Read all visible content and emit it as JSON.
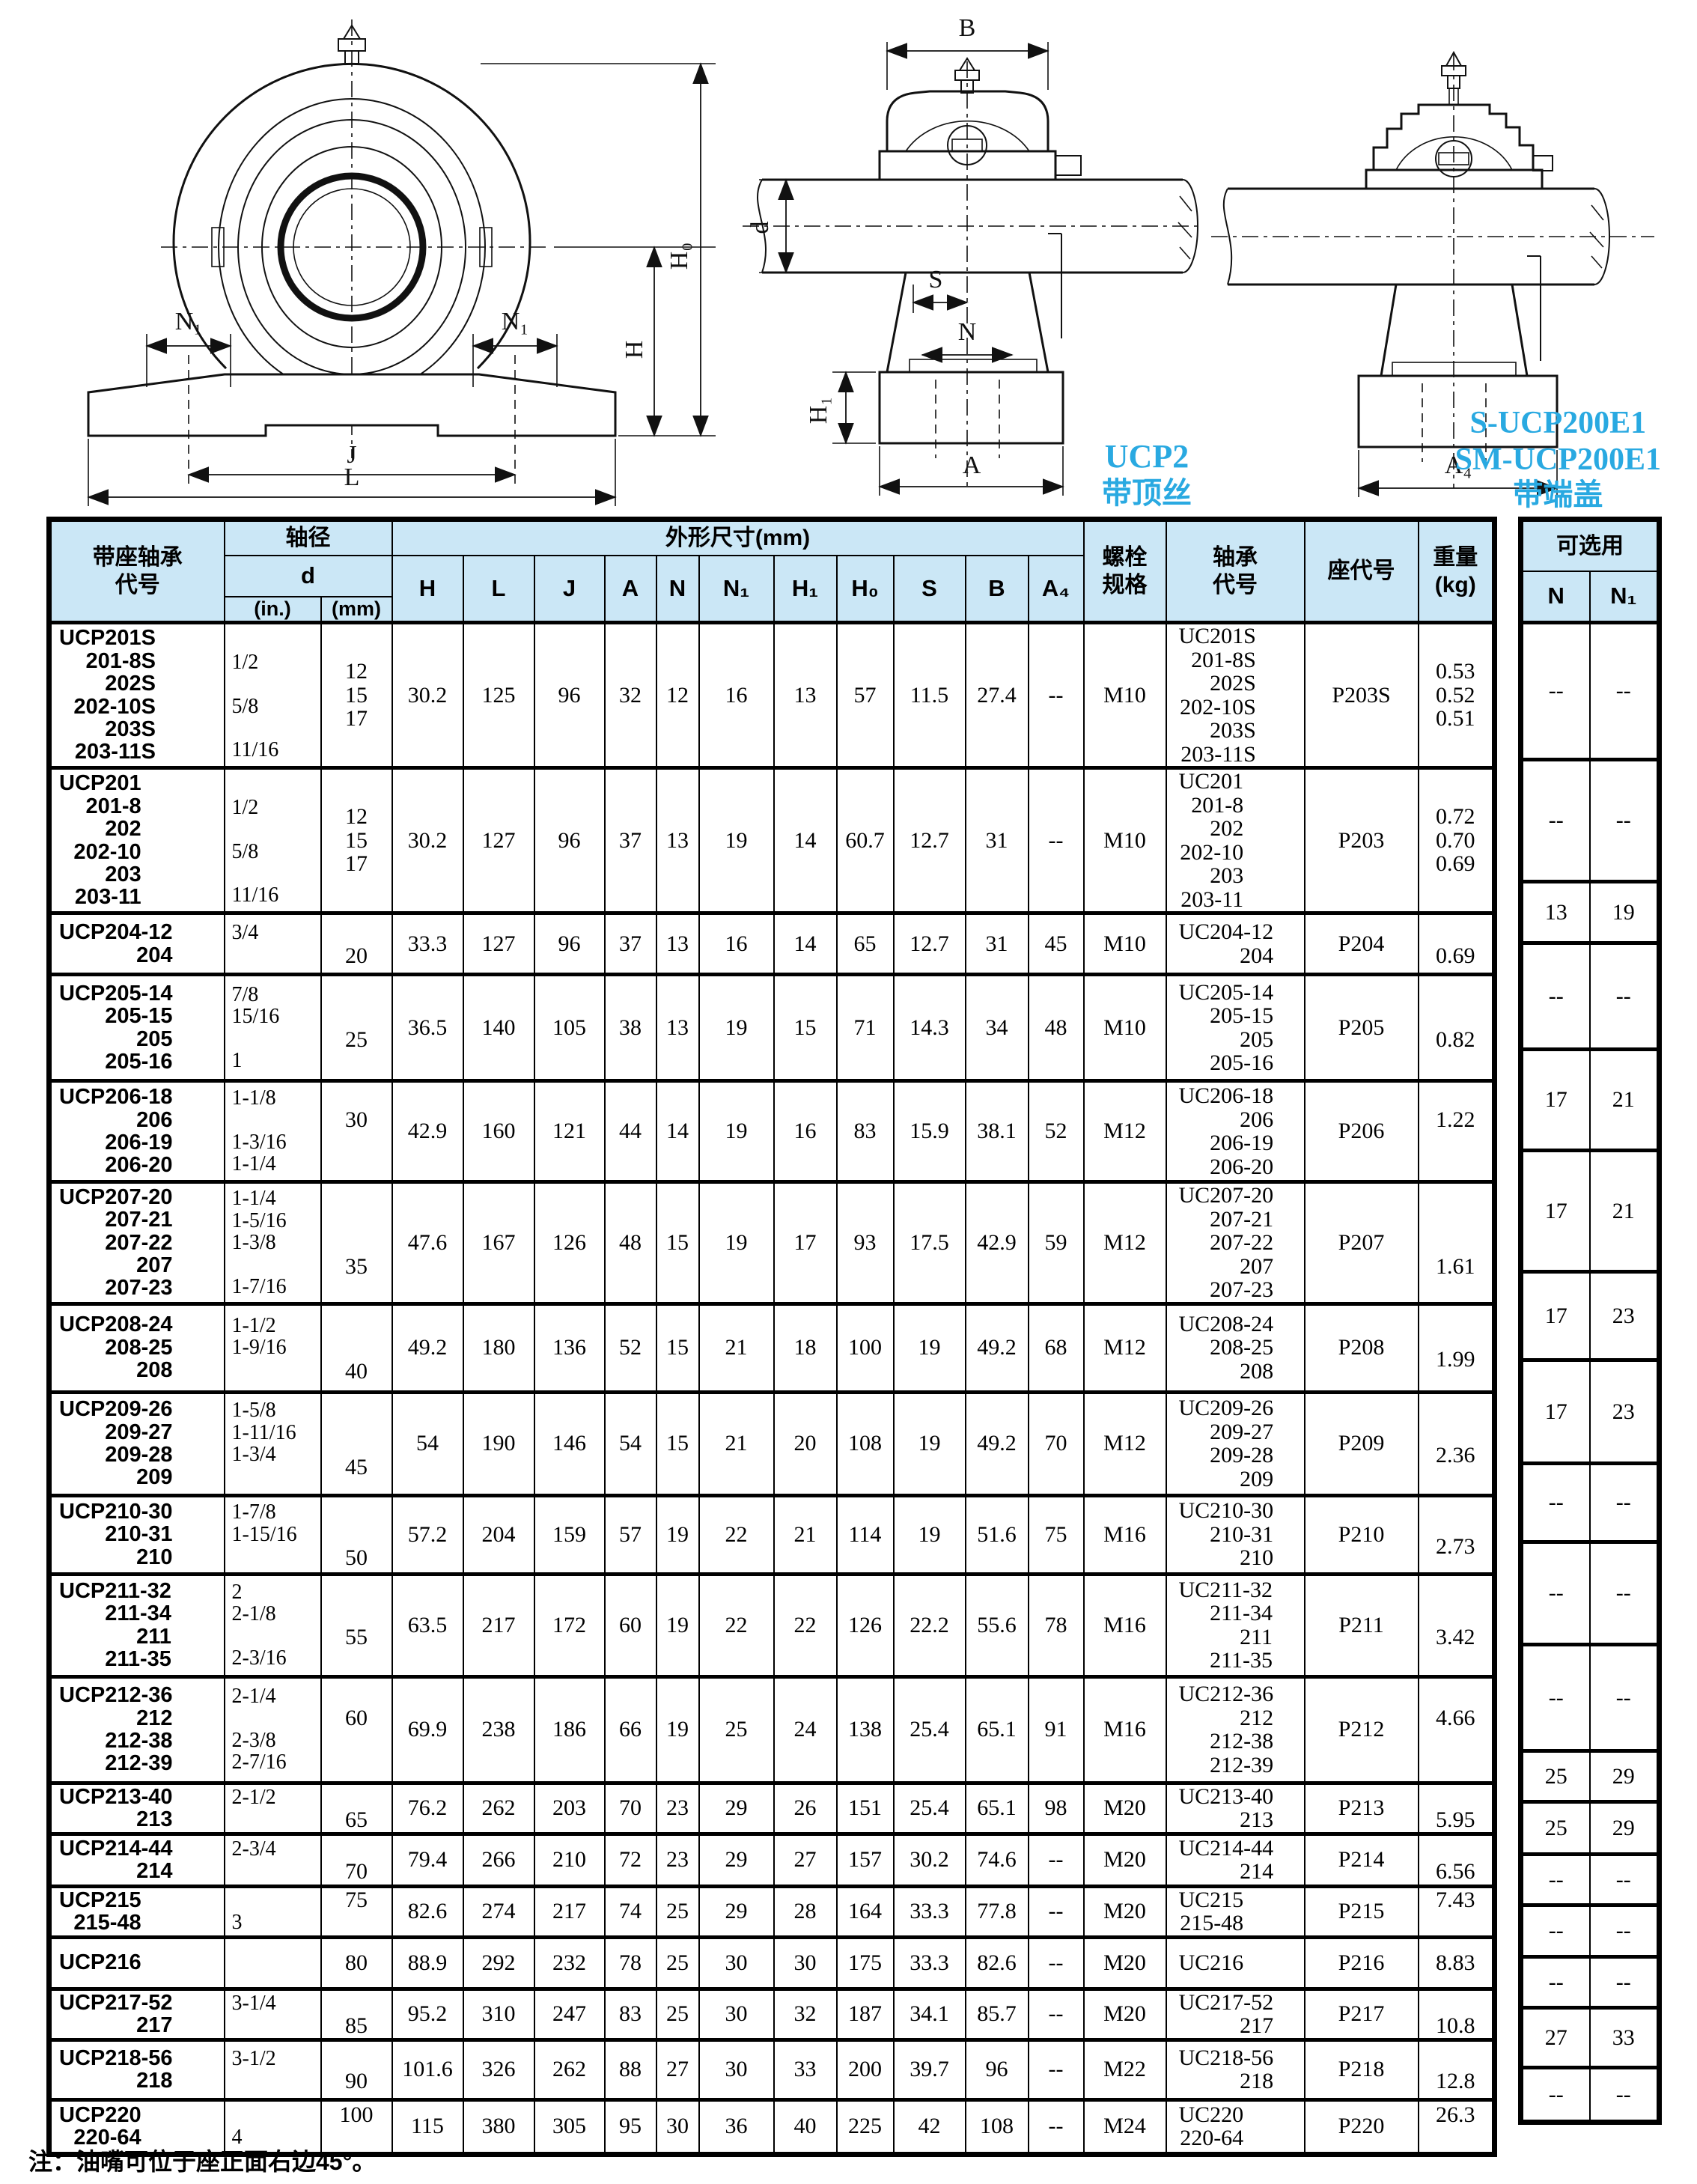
{
  "colors": {
    "header_bg": "#cbe7f6",
    "caption_cyan": "#29a9e1",
    "line": "#000000"
  },
  "drawings": {
    "front_view": {
      "labels": {
        "n1_left": "N₁",
        "n1_right": "N₁",
        "h": "H",
        "h0": "H₀",
        "j": "J",
        "l": "L"
      }
    },
    "side_view": {
      "labels": {
        "b": "B",
        "d": "d",
        "s": "S",
        "n": "N",
        "h1": "H₁",
        "a": "A"
      },
      "caption_line1": "UCP2",
      "caption_line2": "带顶丝"
    },
    "end_cover_view": {
      "labels": {
        "a4": "A₄"
      },
      "caption_line1": "S-UCP200E1",
      "caption_line2": "SM-UCP200E1",
      "caption_line3": "带端盖"
    }
  },
  "note": "注：油嘴可位于座正面右边45°。",
  "optional_table": {
    "title": "可选用",
    "col_n": "N",
    "col_n1": "N₁"
  },
  "main_table": {
    "header": {
      "col_code": "带座轴承\n代号",
      "col_shaft": "轴径",
      "col_d": "d",
      "col_in": "(in.)",
      "col_mm": "(mm)",
      "col_dims": "外形尺寸(mm)",
      "dim_letters": [
        "H",
        "L",
        "J",
        "A",
        "N",
        "N₁",
        "H₁",
        "H₀",
        "S",
        "B",
        "A₄"
      ],
      "col_bolt": "螺栓\n规格",
      "col_bearing": "轴承\n代号",
      "col_seat": "座代号",
      "col_weight": "重量\n(kg)"
    },
    "rows": [
      {
        "codes": [
          "UCP201S",
          "201-8S",
          "202S",
          "202-10S",
          "203S",
          "203-11S"
        ],
        "d_in": [
          "",
          "1/2",
          "",
          "5/8",
          "",
          "11/16"
        ],
        "d_mm": [
          "12",
          "15",
          "17"
        ],
        "H": "30.2",
        "L": "125",
        "J": "96",
        "A": "32",
        "N": "12",
        "N1": "16",
        "H1": "13",
        "H0": "57",
        "S": "11.5",
        "B": "27.4",
        "A4": "--",
        "bolt": "M10",
        "bearing": [
          "UC201S",
          "201-8S",
          "202S",
          "202-10S",
          "203S",
          "203-11S"
        ],
        "seat": "P203S",
        "weight": [
          "0.53",
          "0.52",
          "0.51"
        ],
        "opt_n": "--",
        "opt_n1": "--"
      },
      {
        "codes": [
          "UCP201",
          "201-8",
          "202",
          "202-10",
          "203",
          "203-11"
        ],
        "d_in": [
          "",
          "1/2",
          "",
          "5/8",
          "",
          "11/16"
        ],
        "d_mm": [
          "12",
          "15",
          "17"
        ],
        "H": "30.2",
        "L": "127",
        "J": "96",
        "A": "37",
        "N": "13",
        "N1": "19",
        "H1": "14",
        "H0": "60.7",
        "S": "12.7",
        "B": "31",
        "A4": "--",
        "bolt": "M10",
        "bearing": [
          "UC201",
          "201-8",
          "202",
          "202-10",
          "203",
          "203-11"
        ],
        "seat": "P203",
        "weight": [
          "0.72",
          "0.70",
          "0.69"
        ],
        "opt_n": "--",
        "opt_n1": "--"
      },
      {
        "codes": [
          "UCP204-12",
          "204"
        ],
        "d_in": [
          "3/4",
          ""
        ],
        "d_mm": [
          "",
          "20"
        ],
        "H": "33.3",
        "L": "127",
        "J": "96",
        "A": "37",
        "N": "13",
        "N1": "16",
        "H1": "14",
        "H0": "65",
        "S": "12.7",
        "B": "31",
        "A4": "45",
        "bolt": "M10",
        "bearing": [
          "UC204-12",
          "204"
        ],
        "seat": "P204",
        "weight": [
          "",
          "0.69"
        ],
        "opt_n": "13",
        "opt_n1": "19"
      },
      {
        "codes": [
          "UCP205-14",
          "205-15",
          "205",
          "205-16"
        ],
        "d_in": [
          "7/8",
          "15/16",
          "",
          "1"
        ],
        "d_mm": [
          "",
          "25"
        ],
        "H": "36.5",
        "L": "140",
        "J": "105",
        "A": "38",
        "N": "13",
        "N1": "19",
        "H1": "15",
        "H0": "71",
        "S": "14.3",
        "B": "34",
        "A4": "48",
        "bolt": "M10",
        "bearing": [
          "UC205-14",
          "205-15",
          "205",
          "205-16"
        ],
        "seat": "P205",
        "weight": [
          "",
          "0.82"
        ],
        "opt_n": "--",
        "opt_n1": "--"
      },
      {
        "codes": [
          "UCP206-18",
          "206",
          "206-19",
          "206-20"
        ],
        "d_in": [
          "1-1/8",
          "",
          "1-3/16",
          "1-1/4"
        ],
        "d_mm": [
          "30",
          ""
        ],
        "H": "42.9",
        "L": "160",
        "J": "121",
        "A": "44",
        "N": "14",
        "N1": "19",
        "H1": "16",
        "H0": "83",
        "S": "15.9",
        "B": "38.1",
        "A4": "52",
        "bolt": "M12",
        "bearing": [
          "UC206-18",
          "206",
          "206-19",
          "206-20"
        ],
        "seat": "P206",
        "weight": [
          "1.22",
          ""
        ],
        "opt_n": "17",
        "opt_n1": "21"
      },
      {
        "codes": [
          "UCP207-20",
          "207-21",
          "207-22",
          "207",
          "207-23"
        ],
        "d_in": [
          "1-1/4",
          "1-5/16",
          "1-3/8",
          "",
          "1-7/16"
        ],
        "d_mm": [
          "",
          "",
          "35"
        ],
        "H": "47.6",
        "L": "167",
        "J": "126",
        "A": "48",
        "N": "15",
        "N1": "19",
        "H1": "17",
        "H0": "93",
        "S": "17.5",
        "B": "42.9",
        "A4": "59",
        "bolt": "M12",
        "bearing": [
          "UC207-20",
          "207-21",
          "207-22",
          "207",
          "207-23"
        ],
        "seat": "P207",
        "weight": [
          "",
          "",
          "1.61"
        ],
        "opt_n": "17",
        "opt_n1": "21"
      },
      {
        "codes": [
          "UCP208-24",
          "208-25",
          "208"
        ],
        "d_in": [
          "1-1/2",
          "1-9/16",
          ""
        ],
        "d_mm": [
          "",
          "",
          "40"
        ],
        "H": "49.2",
        "L": "180",
        "J": "136",
        "A": "52",
        "N": "15",
        "N1": "21",
        "H1": "18",
        "H0": "100",
        "S": "19",
        "B": "49.2",
        "A4": "68",
        "bolt": "M12",
        "bearing": [
          "UC208-24",
          "208-25",
          "208"
        ],
        "seat": "P208",
        "weight": [
          "",
          "1.99"
        ],
        "opt_n": "17",
        "opt_n1": "23"
      },
      {
        "codes": [
          "UCP209-26",
          "209-27",
          "209-28",
          "209"
        ],
        "d_in": [
          "1-5/8",
          "1-11/16",
          "1-3/4",
          ""
        ],
        "d_mm": [
          "",
          "",
          "45"
        ],
        "H": "54",
        "L": "190",
        "J": "146",
        "A": "54",
        "N": "15",
        "N1": "21",
        "H1": "20",
        "H0": "108",
        "S": "19",
        "B": "49.2",
        "A4": "70",
        "bolt": "M12",
        "bearing": [
          "UC209-26",
          "209-27",
          "209-28",
          "209"
        ],
        "seat": "P209",
        "weight": [
          "",
          "2.36"
        ],
        "opt_n": "17",
        "opt_n1": "23"
      },
      {
        "codes": [
          "UCP210-30",
          "210-31",
          "210"
        ],
        "d_in": [
          "1-7/8",
          "1-15/16",
          ""
        ],
        "d_mm": [
          "",
          "",
          "50"
        ],
        "H": "57.2",
        "L": "204",
        "J": "159",
        "A": "57",
        "N": "19",
        "N1": "22",
        "H1": "21",
        "H0": "114",
        "S": "19",
        "B": "51.6",
        "A4": "75",
        "bolt": "M16",
        "bearing": [
          "UC210-30",
          "210-31",
          "210"
        ],
        "seat": "P210",
        "weight": [
          "",
          "2.73"
        ],
        "opt_n": "--",
        "opt_n1": "--"
      },
      {
        "codes": [
          "UCP211-32",
          "211-34",
          "211",
          "211-35"
        ],
        "d_in": [
          "2",
          "2-1/8",
          "",
          "2-3/16"
        ],
        "d_mm": [
          "",
          "55"
        ],
        "H": "63.5",
        "L": "217",
        "J": "172",
        "A": "60",
        "N": "19",
        "N1": "22",
        "H1": "22",
        "H0": "126",
        "S": "22.2",
        "B": "55.6",
        "A4": "78",
        "bolt": "M16",
        "bearing": [
          "UC211-32",
          "211-34",
          "211",
          "211-35"
        ],
        "seat": "P211",
        "weight": [
          "",
          "3.42"
        ],
        "opt_n": "--",
        "opt_n1": "--"
      },
      {
        "codes": [
          "UCP212-36",
          "212",
          "212-38",
          "212-39"
        ],
        "d_in": [
          "2-1/4",
          "",
          "2-3/8",
          "2-7/16"
        ],
        "d_mm": [
          "60",
          ""
        ],
        "H": "69.9",
        "L": "238",
        "J": "186",
        "A": "66",
        "N": "19",
        "N1": "25",
        "H1": "24",
        "H0": "138",
        "S": "25.4",
        "B": "65.1",
        "A4": "91",
        "bolt": "M16",
        "bearing": [
          "UC212-36",
          "212",
          "212-38",
          "212-39"
        ],
        "seat": "P212",
        "weight": [
          "4.66",
          ""
        ],
        "opt_n": "--",
        "opt_n1": "--"
      },
      {
        "codes": [
          "UCP213-40",
          "213"
        ],
        "d_in": [
          "2-1/2",
          ""
        ],
        "d_mm": [
          "",
          "65"
        ],
        "H": "76.2",
        "L": "262",
        "J": "203",
        "A": "70",
        "N": "23",
        "N1": "29",
        "H1": "26",
        "H0": "151",
        "S": "25.4",
        "B": "65.1",
        "A4": "98",
        "bolt": "M20",
        "bearing": [
          "UC213-40",
          "213"
        ],
        "seat": "P213",
        "weight": [
          "",
          "5.95"
        ],
        "opt_n": "25",
        "opt_n1": "29"
      },
      {
        "codes": [
          "UCP214-44",
          "214"
        ],
        "d_in": [
          "2-3/4",
          ""
        ],
        "d_mm": [
          "",
          "70"
        ],
        "H": "79.4",
        "L": "266",
        "J": "210",
        "A": "72",
        "N": "23",
        "N1": "29",
        "H1": "27",
        "H0": "157",
        "S": "30.2",
        "B": "74.6",
        "A4": "--",
        "bolt": "M20",
        "bearing": [
          "UC214-44",
          "214"
        ],
        "seat": "P214",
        "weight": [
          "",
          "6.56"
        ],
        "opt_n": "25",
        "opt_n1": "29"
      },
      {
        "codes": [
          "UCP215",
          "215-48"
        ],
        "d_in": [
          "",
          "3"
        ],
        "d_mm": [
          "75",
          ""
        ],
        "H": "82.6",
        "L": "274",
        "J": "217",
        "A": "74",
        "N": "25",
        "N1": "29",
        "H1": "28",
        "H0": "164",
        "S": "33.3",
        "B": "77.8",
        "A4": "--",
        "bolt": "M20",
        "bearing": [
          "UC215",
          "215-48"
        ],
        "seat": "P215",
        "weight": [
          "7.43",
          ""
        ],
        "opt_n": "--",
        "opt_n1": "--"
      },
      {
        "codes": [
          "UCP216"
        ],
        "d_in": [
          ""
        ],
        "d_mm": [
          "80"
        ],
        "H": "88.9",
        "L": "292",
        "J": "232",
        "A": "78",
        "N": "25",
        "N1": "30",
        "H1": "30",
        "H0": "175",
        "S": "33.3",
        "B": "82.6",
        "A4": "--",
        "bolt": "M20",
        "bearing": [
          "UC216"
        ],
        "seat": "P216",
        "weight": [
          "8.83"
        ],
        "opt_n": "--",
        "opt_n1": "--"
      },
      {
        "codes": [
          "UCP217-52",
          "217"
        ],
        "d_in": [
          "3-1/4",
          ""
        ],
        "d_mm": [
          "",
          "85"
        ],
        "H": "95.2",
        "L": "310",
        "J": "247",
        "A": "83",
        "N": "25",
        "N1": "30",
        "H1": "32",
        "H0": "187",
        "S": "34.1",
        "B": "85.7",
        "A4": "--",
        "bolt": "M20",
        "bearing": [
          "UC217-52",
          "217"
        ],
        "seat": "P217",
        "weight": [
          "",
          "10.8"
        ],
        "opt_n": "--",
        "opt_n1": "--"
      },
      {
        "codes": [
          "UCP218-56",
          "218"
        ],
        "d_in": [
          "3-1/2",
          ""
        ],
        "d_mm": [
          "",
          "90"
        ],
        "H": "101.6",
        "L": "326",
        "J": "262",
        "A": "88",
        "N": "27",
        "N1": "30",
        "H1": "33",
        "H0": "200",
        "S": "39.7",
        "B": "96",
        "A4": "--",
        "bolt": "M22",
        "bearing": [
          "UC218-56",
          "218"
        ],
        "seat": "P218",
        "weight": [
          "",
          "12.8"
        ],
        "opt_n": "27",
        "opt_n1": "33"
      },
      {
        "codes": [
          "UCP220",
          "220-64"
        ],
        "d_in": [
          "",
          "4"
        ],
        "d_mm": [
          "100",
          ""
        ],
        "H": "115",
        "L": "380",
        "J": "305",
        "A": "95",
        "N": "30",
        "N1": "36",
        "H1": "40",
        "H0": "225",
        "S": "42",
        "B": "108",
        "A4": "--",
        "bolt": "M24",
        "bearing": [
          "UC220",
          "220-64"
        ],
        "seat": "P220",
        "weight": [
          "26.3",
          ""
        ],
        "opt_n": "--",
        "opt_n1": "--"
      }
    ]
  }
}
